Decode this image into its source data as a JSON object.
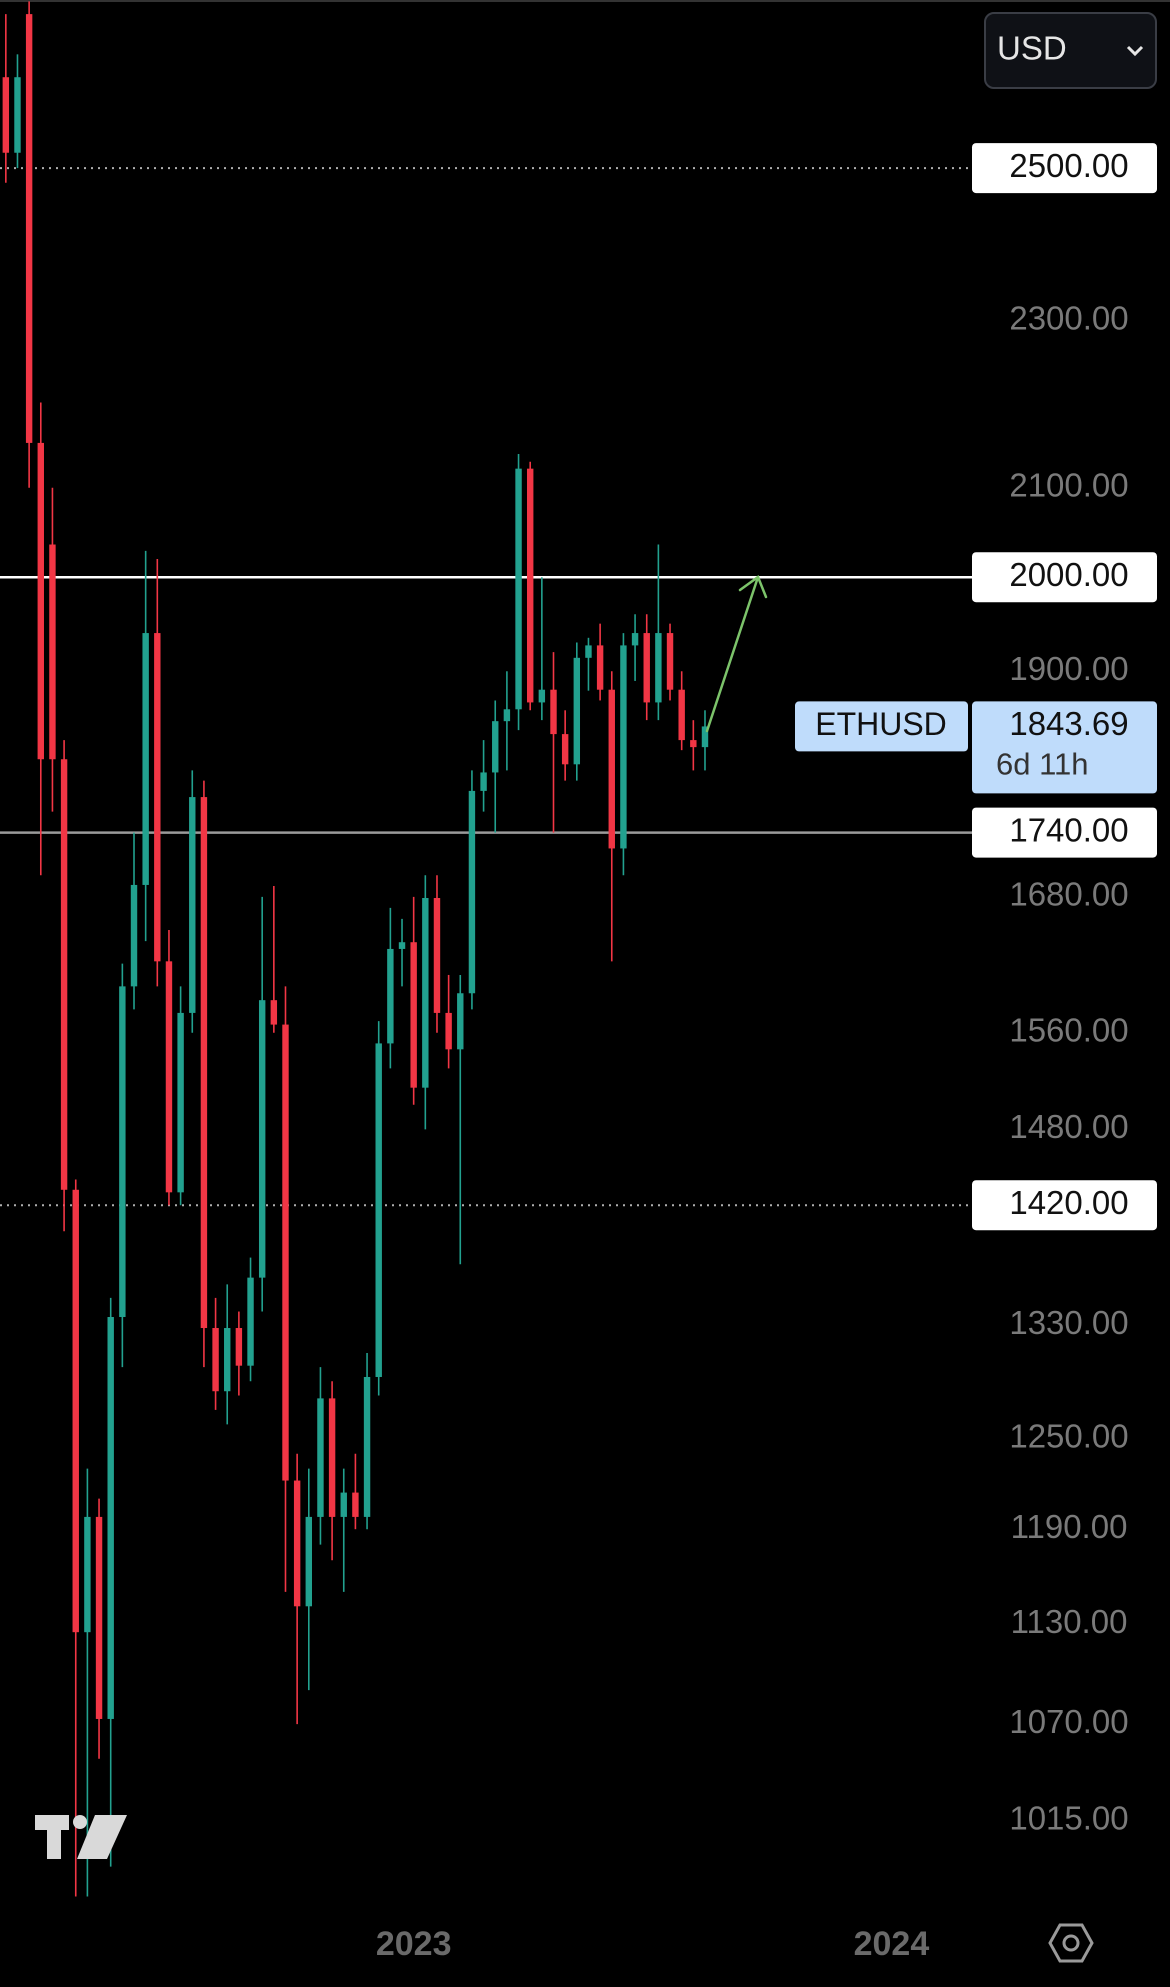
{
  "currency": "USD",
  "chart_data": {
    "type": "candlestick",
    "log_scale": true,
    "ylim": [
      970,
      2740
    ],
    "xlim": [
      -0.5,
      83
    ],
    "yticks": [
      {
        "value": 2300,
        "label": "2300.00"
      },
      {
        "value": 2100,
        "label": "2100.00"
      },
      {
        "value": 1900,
        "label": "1900.00"
      },
      {
        "value": 1680,
        "label": "1680.00"
      },
      {
        "value": 1560,
        "label": "1560.00"
      },
      {
        "value": 1480,
        "label": "1480.00"
      },
      {
        "value": 1330,
        "label": "1330.00"
      },
      {
        "value": 1250,
        "label": "1250.00"
      },
      {
        "value": 1190,
        "label": "1190.00"
      },
      {
        "value": 1130,
        "label": "1130.00"
      },
      {
        "value": 1070,
        "label": "1070.00"
      },
      {
        "value": 1015,
        "label": "1015.00"
      }
    ],
    "xticks": [
      {
        "value": 35,
        "label": "2023"
      },
      {
        "value": 76,
        "label": "2024"
      }
    ],
    "series": [
      {
        "name": "ETHUSD",
        "up_color": "#22a18f",
        "down_color": "#f23645",
        "open": [
          2627,
          2521,
          2719,
          2152,
          2036,
          1811,
          1432,
          1125,
          1198,
          1073,
          1336,
          1600,
          1691,
          1940,
          1622,
          1430,
          1577,
          1774,
          1328,
          1283,
          1328,
          1301,
          1365,
          1588,
          1567,
          1222,
          1141,
          1198,
          1278,
          1198,
          1214,
          1198,
          1293,
          1551,
          1633,
          1639,
          1514,
          1679,
          1577,
          1546,
          1594,
          1780,
          1798,
          1849,
          1861,
          2122,
          1868,
          1881,
          1836,
          1806,
          1914,
          1927,
          1881,
          1725,
          1927,
          1940,
          1868,
          1940,
          1881,
          1830,
          1823
        ],
        "high": [
          2719,
          2660,
          2738,
          2200,
          2100,
          1830,
          1440,
          1230,
          1210,
          1350,
          1620,
          1740,
          2029,
          2020,
          1650,
          1600,
          1800,
          1790,
          1350,
          1360,
          1340,
          1380,
          1680,
          1690,
          1600,
          1240,
          1230,
          1300,
          1290,
          1230,
          1240,
          1310,
          1570,
          1670,
          1660,
          1680,
          1700,
          1700,
          1610,
          1610,
          1800,
          1830,
          1870,
          1900,
          2139,
          2130,
          2000,
          1920,
          1860,
          1930,
          1935,
          1950,
          1900,
          1940,
          1960,
          1960,
          2036,
          1950,
          1900,
          1850,
          1860
        ],
        "low": [
          2480,
          2500,
          2100,
          1700,
          1760,
          1400,
          974,
          974,
          1050,
          990,
          1300,
          1580,
          1640,
          1600,
          1420,
          1420,
          1560,
          1300,
          1270,
          1260,
          1280,
          1290,
          1340,
          1560,
          1150,
          1070,
          1090,
          1180,
          1170,
          1150,
          1190,
          1190,
          1280,
          1530,
          1600,
          1500,
          1480,
          1560,
          1530,
          1375,
          1580,
          1760,
          1740,
          1800,
          1840,
          1860,
          1850,
          1740,
          1790,
          1790,
          1880,
          1870,
          1622,
          1700,
          1890,
          1850,
          1850,
          1870,
          1820,
          1800,
          1800
        ],
        "close": [
          2521,
          2627,
          2152,
          1811,
          1811,
          1432,
          1125,
          1198,
          1073,
          1336,
          1600,
          1691,
          1940,
          1622,
          1430,
          1577,
          1774,
          1328,
          1283,
          1328,
          1301,
          1365,
          1588,
          1567,
          1222,
          1141,
          1198,
          1278,
          1198,
          1214,
          1198,
          1293,
          1551,
          1633,
          1639,
          1514,
          1679,
          1577,
          1546,
          1594,
          1780,
          1798,
          1849,
          1861,
          2122,
          1868,
          1881,
          1836,
          1806,
          1914,
          1927,
          1881,
          1725,
          1927,
          1940,
          1868,
          1940,
          1881,
          1830,
          1823,
          1843.69
        ]
      }
    ],
    "countdown": "6d 11h",
    "levels": [
      {
        "value": 2500,
        "label": "2500.00",
        "style": "dotted",
        "color": "#b0b0b0"
      },
      {
        "value": 2000,
        "label": "2000.00",
        "style": "solid",
        "color": "#ffffff"
      },
      {
        "value": 1740,
        "label": "1740.00",
        "style": "solid",
        "color": "#9a9a9a"
      },
      {
        "value": 1420,
        "label": "1420.00",
        "style": "dotted",
        "color": "#b0b0b0"
      }
    ]
  }
}
